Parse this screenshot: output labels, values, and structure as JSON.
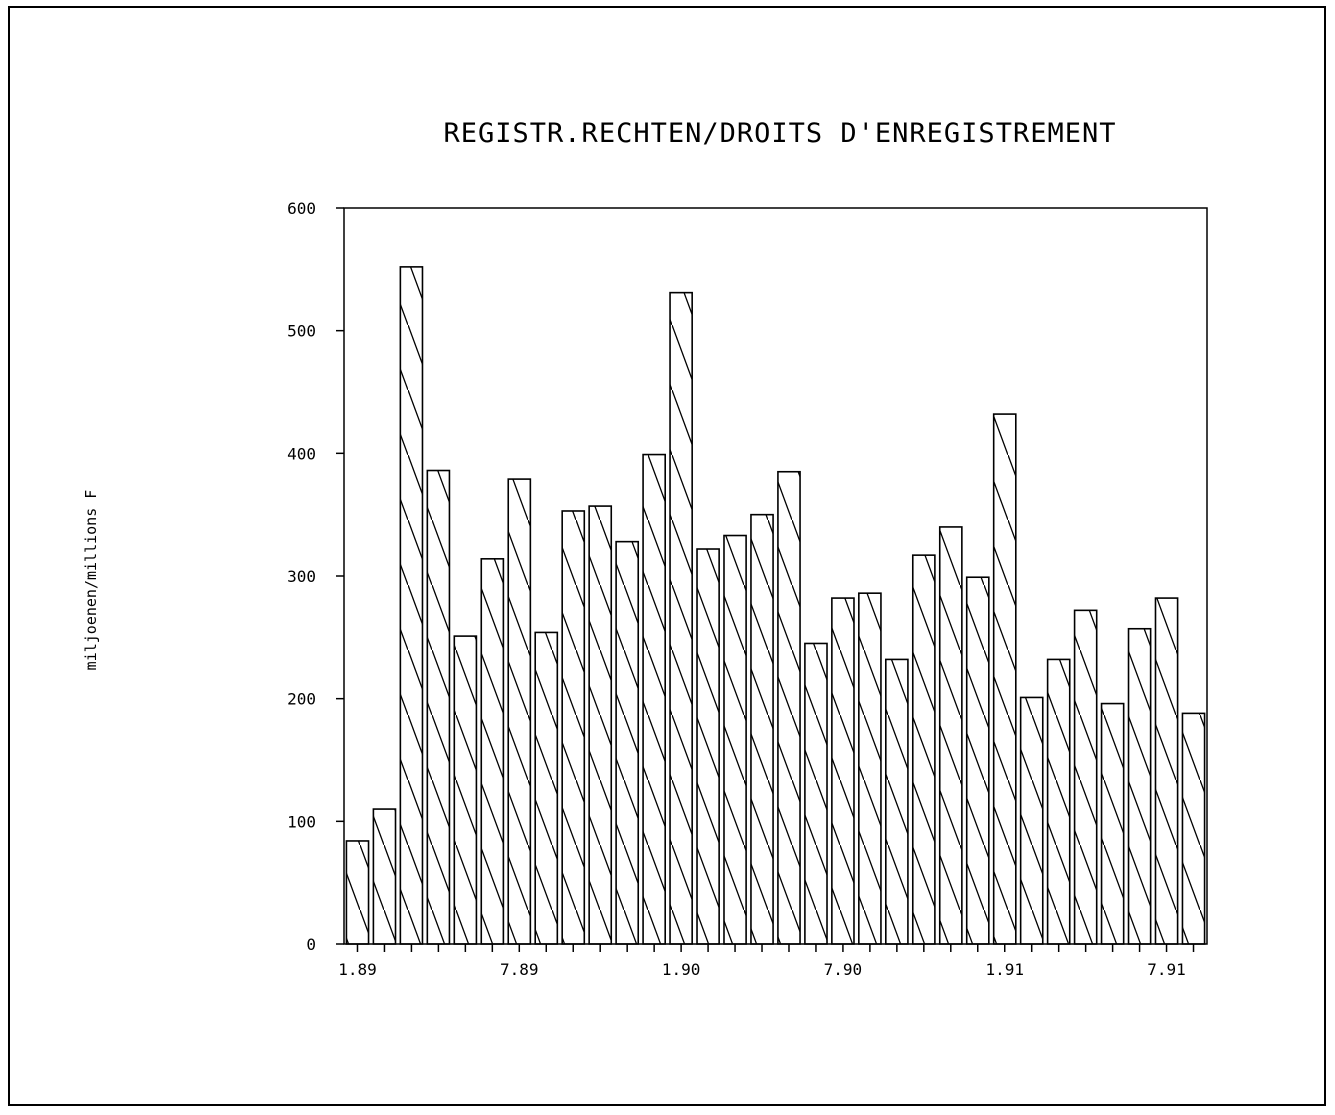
{
  "chart_data": {
    "type": "bar",
    "title": "REGISTR.RECHTEN/DROITS D'ENREGISTREMENT",
    "ylabel": "miljoenen/millions F",
    "xlabel": "",
    "ylim": [
      0,
      600
    ],
    "yticks": [
      "0",
      "100",
      "200",
      "300",
      "400",
      "500",
      "600"
    ],
    "xticks": [
      {
        "label": "1.89",
        "index": 0
      },
      {
        "label": "7.89",
        "index": 6
      },
      {
        "label": "1.90",
        "index": 12
      },
      {
        "label": "7.90",
        "index": 18
      },
      {
        "label": "1.91",
        "index": 24
      },
      {
        "label": "7.91",
        "index": 30
      }
    ],
    "values": [
      84,
      110,
      552,
      386,
      251,
      314,
      379,
      254,
      353,
      357,
      328,
      399,
      531,
      322,
      333,
      350,
      385,
      245,
      282,
      286,
      232,
      317,
      340,
      299,
      432,
      201,
      232,
      272,
      196,
      257,
      282,
      188
    ],
    "pattern": "diagonal-hatch",
    "colors": {
      "bar_stroke": "#000000",
      "hatch": "#000000",
      "background": "#ffffff"
    }
  }
}
